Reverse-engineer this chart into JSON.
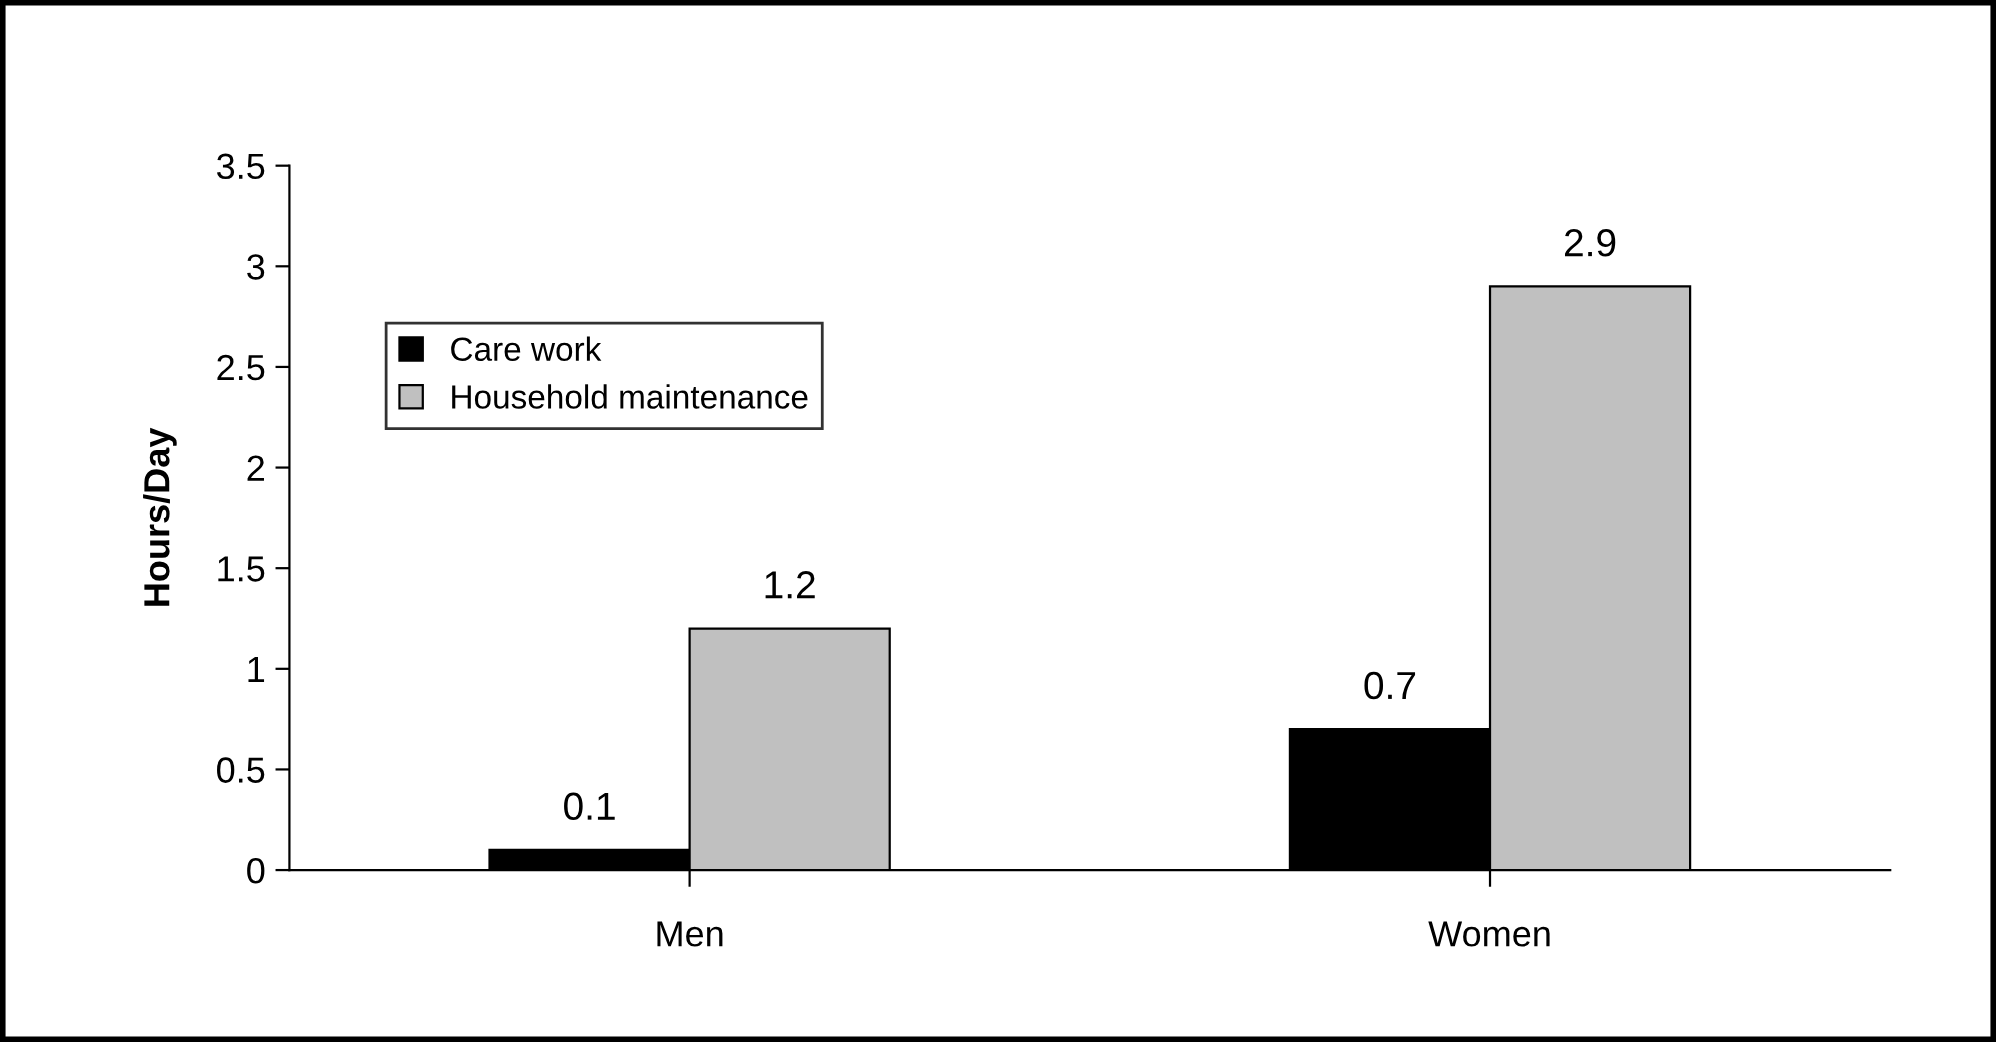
{
  "chart_data": {
    "type": "bar",
    "ylabel": "Hours/Day",
    "categories": [
      "Men",
      "Women"
    ],
    "series": [
      {
        "name": "Care work",
        "color": "#000000",
        "values": [
          0.1,
          0.7
        ]
      },
      {
        "name": "Household maintenance",
        "color": "#c0c0c0",
        "values": [
          1.2,
          2.9
        ]
      }
    ],
    "ylim": [
      0,
      3.5
    ],
    "yticks": [
      0,
      0.5,
      1,
      1.5,
      2,
      2.5,
      3,
      3.5
    ],
    "grid": false,
    "legend": "top left",
    "data_labels": true
  }
}
